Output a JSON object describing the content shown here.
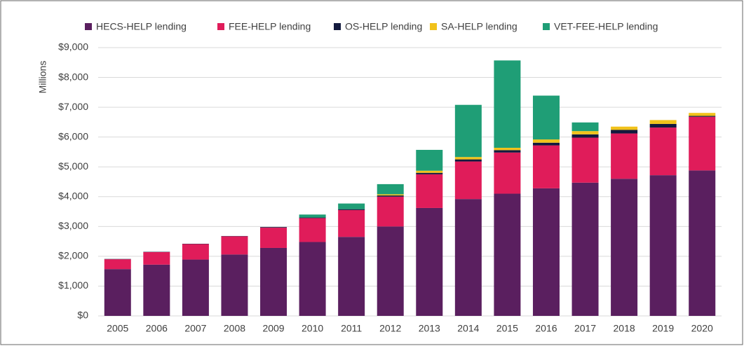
{
  "chart_data": {
    "type": "stacked_bar",
    "y_label": "Millions",
    "categories": [
      "2005",
      "2006",
      "2007",
      "2008",
      "2009",
      "2010",
      "2011",
      "2012",
      "2013",
      "2014",
      "2015",
      "2016",
      "2017",
      "2018",
      "2019",
      "2020"
    ],
    "series": [
      {
        "name": "HECS-HELP lending",
        "color": "#5a1f5f",
        "values": [
          1570,
          1720,
          1890,
          2060,
          2280,
          2480,
          2650,
          3000,
          3620,
          3920,
          4100,
          4280,
          4470,
          4600,
          4720,
          4880
        ]
      },
      {
        "name": "FEE-HELP lending",
        "color": "#e01c5a",
        "values": [
          330,
          420,
          520,
          610,
          680,
          800,
          900,
          1000,
          1130,
          1260,
          1380,
          1440,
          1510,
          1520,
          1600,
          1800
        ]
      },
      {
        "name": "OS-HELP lending",
        "color": "#131a3e",
        "values": [
          10,
          10,
          10,
          10,
          20,
          20,
          30,
          40,
          50,
          70,
          80,
          90,
          110,
          120,
          120,
          30
        ]
      },
      {
        "name": "SA-HELP lending",
        "color": "#f1c21b",
        "values": [
          0,
          0,
          0,
          0,
          0,
          0,
          0,
          40,
          70,
          80,
          80,
          110,
          110,
          110,
          130,
          100
        ]
      },
      {
        "name": "VET-FEE-HELP lending",
        "color": "#1f9e76",
        "values": [
          0,
          0,
          0,
          0,
          0,
          100,
          190,
          340,
          700,
          1750,
          2930,
          1470,
          290,
          0,
          0,
          0
        ]
      }
    ],
    "ylim": [
      0,
      9000
    ],
    "yticks": [
      {
        "value": 0,
        "label": "$0"
      },
      {
        "value": 1000,
        "label": "$1,000"
      },
      {
        "value": 2000,
        "label": "$2,000"
      },
      {
        "value": 3000,
        "label": "$3,000"
      },
      {
        "value": 4000,
        "label": "$4,000"
      },
      {
        "value": 5000,
        "label": "$5,000"
      },
      {
        "value": 6000,
        "label": "$6,000"
      },
      {
        "value": 7000,
        "label": "$7,000"
      },
      {
        "value": 8000,
        "label": "$8,000"
      },
      {
        "value": 9000,
        "label": "$9,000"
      }
    ],
    "grid": true
  }
}
